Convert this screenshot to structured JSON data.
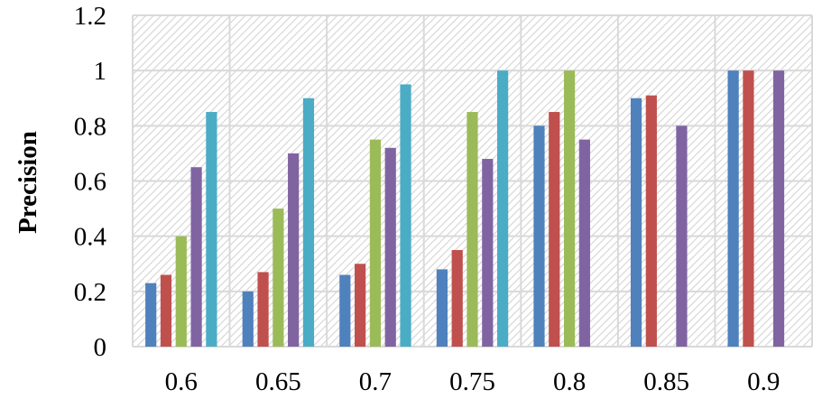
{
  "chart_data": {
    "type": "bar",
    "title": "",
    "xlabel": "",
    "ylabel": "Precision",
    "ylim": [
      0,
      1.2
    ],
    "yticks": [
      "0",
      "0.2",
      "0.4",
      "0.6",
      "0.8",
      "1",
      "1.2"
    ],
    "grid": true,
    "background": "diagonal hatch",
    "categories": [
      "0.6",
      "0.65",
      "0.7",
      "0.75",
      "0.8",
      "0.85",
      "0.9"
    ],
    "series": [
      {
        "color": "#4F81BD",
        "values": [
          0.23,
          0.2,
          0.26,
          0.28,
          0.8,
          0.9,
          1.0
        ]
      },
      {
        "color": "#C0504D",
        "values": [
          0.26,
          0.27,
          0.3,
          0.35,
          0.85,
          0.91,
          1.0
        ]
      },
      {
        "color": "#9BBB59",
        "values": [
          0.4,
          0.5,
          0.75,
          0.85,
          1.0,
          null,
          null
        ]
      },
      {
        "color": "#8064A2",
        "values": [
          0.65,
          0.7,
          0.72,
          0.68,
          0.75,
          0.8,
          1.0
        ]
      },
      {
        "color": "#4BACC6",
        "values": [
          0.85,
          0.9,
          0.95,
          1.0,
          null,
          null,
          null
        ]
      }
    ]
  }
}
